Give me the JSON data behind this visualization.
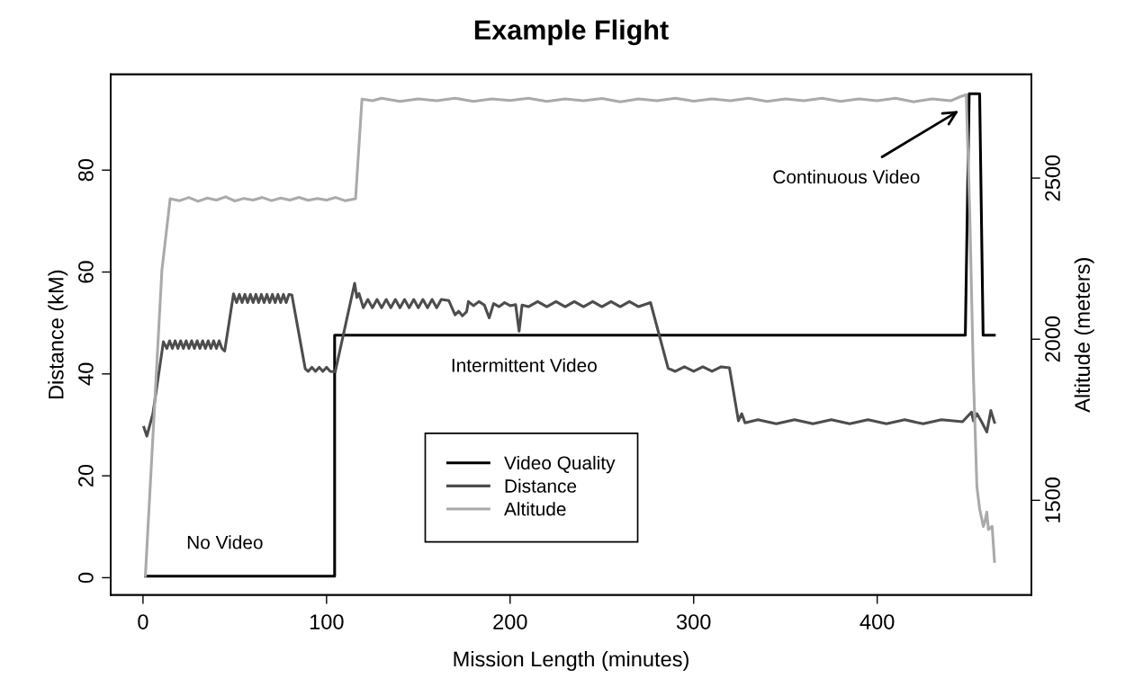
{
  "chart_data": {
    "type": "line",
    "title": "Example Flight",
    "xlabel": "Mission Length (minutes)",
    "ylabel": "Distance (kM)",
    "y2label": "Altitude (meters)",
    "xlim": [
      -17.6,
      484
    ],
    "xticks": [
      0,
      100,
      200,
      300,
      400
    ],
    "ylim": [
      -3.4,
      98.8
    ],
    "yticks": [
      0,
      20,
      40,
      60,
      80
    ],
    "y2lim": [
      1206,
      2822
    ],
    "y2ticks": [
      1500,
      2000,
      2500
    ],
    "grid": false,
    "legend": "bottom",
    "marker": "none",
    "line_style": "solid",
    "annotations": [
      "No Video",
      "Intermittent Video",
      "Continuous Video"
    ],
    "series": [
      {
        "name": "Video Quality",
        "color": "#000000",
        "x": [
          1.3,
          104.4,
          104.4,
          448.0,
          450.1,
          455.8,
          457.7,
          463.8
        ],
        "values": [
          0.3,
          0.3,
          47.6,
          47.6,
          95.0,
          95.0,
          47.6,
          47.6
        ]
      },
      {
        "name": "Distance",
        "color": "#4d4d4d",
        "x": [
          0.5,
          2.1,
          5.4,
          11.1,
          13,
          14.5,
          16,
          17.5,
          19,
          20.5,
          22,
          23.5,
          25,
          26.5,
          28,
          29.5,
          31,
          32.5,
          34,
          35.5,
          37,
          38.5,
          40,
          41.5,
          43,
          44.5,
          49.3,
          51,
          52.5,
          54,
          55.5,
          57,
          58.5,
          60,
          61.5,
          63,
          64.5,
          66,
          67.5,
          69,
          70.5,
          72,
          73.5,
          75,
          76.5,
          78,
          79.5,
          81.1,
          88.4,
          90,
          92,
          94,
          96,
          98,
          100,
          102,
          104.7,
          115.3,
          116.5,
          117.7,
          120,
          122.5,
          125,
          127.5,
          130,
          132.5,
          135,
          137.5,
          140,
          142.5,
          145,
          147.5,
          150,
          152.5,
          155,
          157.5,
          160,
          162.5,
          166.6,
          170,
          172,
          174,
          176.3,
          177.3,
          180,
          183,
          186,
          188.6,
          191,
          194,
          197,
          200,
          203,
          204.9,
          206.5,
          210,
          215,
          220,
          225,
          230,
          235,
          240,
          245,
          250,
          255,
          260,
          265,
          270,
          276.5,
          286.1,
          290,
          295,
          300,
          305,
          310,
          315,
          319.5,
          324.4,
          326.2,
          328,
          335,
          345,
          355,
          365,
          375,
          385,
          395,
          405,
          415,
          425,
          435,
          446.5,
          451.4,
          452.4,
          454.3,
          456.6,
          459.7,
          461.9,
          463.9
        ],
        "values": [
          29.5,
          27.8,
          32.2,
          46.3,
          45.0,
          46.5,
          45.0,
          46.5,
          45.0,
          46.5,
          45.0,
          46.5,
          45.0,
          46.5,
          45.0,
          46.5,
          45.0,
          46.5,
          45.0,
          46.5,
          45.0,
          46.5,
          45.0,
          46.5,
          45.0,
          44.5,
          55.7,
          54.0,
          55.6,
          54.0,
          55.6,
          54.0,
          55.6,
          54.0,
          55.6,
          54.0,
          55.6,
          54.0,
          55.6,
          54.0,
          55.6,
          54.0,
          55.6,
          54.0,
          55.6,
          54.0,
          55.6,
          55.5,
          41.0,
          40.5,
          41.3,
          40.5,
          41.3,
          40.5,
          41.3,
          40.5,
          40.4,
          57.8,
          55.0,
          55.8,
          53.0,
          54.6,
          53.0,
          54.6,
          53.0,
          54.6,
          53.0,
          54.6,
          53.0,
          54.6,
          53.0,
          54.6,
          53.0,
          54.6,
          53.0,
          54.6,
          53.0,
          54.6,
          54.4,
          51.6,
          52.3,
          51.4,
          52.2,
          54.2,
          53.4,
          54.2,
          53.5,
          51.0,
          53.8,
          53.2,
          54.0,
          53.4,
          53.6,
          48.4,
          53.5,
          53.2,
          54.2,
          53.2,
          54.2,
          53.2,
          54.2,
          53.2,
          54.2,
          53.2,
          54.2,
          53.2,
          54.2,
          53.2,
          54.0,
          41.1,
          40.5,
          41.4,
          40.5,
          41.4,
          40.5,
          41.4,
          41.2,
          30.8,
          32.2,
          30.4,
          31.0,
          30.2,
          31.0,
          30.2,
          31.0,
          30.2,
          31.0,
          30.2,
          31.0,
          30.2,
          31.0,
          30.6,
          32.5,
          30.8,
          32.2,
          30.8,
          28.6,
          32.8,
          30.5
        ]
      },
      {
        "name": "Altitude",
        "color": "#aaaaaa",
        "axis": "y2",
        "x": [
          1.3,
          10.3,
          14.8,
          20,
          25,
          30,
          35,
          40,
          45,
          50,
          55,
          60,
          65,
          70,
          75,
          80,
          85,
          90,
          95,
          100,
          105,
          110,
          115.8,
          119.3,
          125,
          130,
          140,
          150,
          160,
          170,
          180,
          190,
          200,
          210,
          220,
          230,
          240,
          250,
          260,
          270,
          280,
          290,
          300,
          310,
          320,
          330,
          340,
          350,
          360,
          370,
          380,
          390,
          400,
          410,
          420,
          430,
          440,
          445,
          448.5,
          450.4,
          452.4,
          454.3,
          455.8,
          457.8,
          458.5,
          459.7,
          460.6,
          462.6,
          463.9
        ],
        "values": [
          1266,
          2214,
          2436,
          2430,
          2440,
          2428,
          2438,
          2432,
          2442,
          2429,
          2437,
          2432,
          2440,
          2430,
          2438,
          2432,
          2440,
          2431,
          2437,
          2432,
          2440,
          2430,
          2436,
          2745,
          2740,
          2748,
          2738,
          2746,
          2740,
          2748,
          2738,
          2746,
          2741,
          2748,
          2738,
          2746,
          2740,
          2747,
          2737,
          2746,
          2740,
          2748,
          2739,
          2746,
          2740,
          2748,
          2738,
          2746,
          2740,
          2748,
          2738,
          2746,
          2740,
          2748,
          2737,
          2746,
          2740,
          2752,
          2759,
          2393,
          1889,
          1543,
          1473,
          1419,
          1430,
          1463,
          1409,
          1419,
          1310
        ]
      }
    ]
  }
}
